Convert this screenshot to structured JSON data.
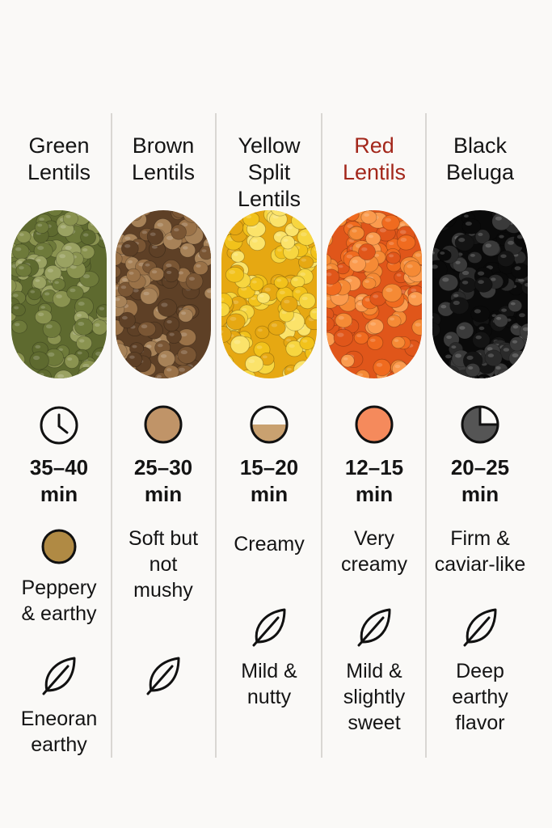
{
  "columns": [
    {
      "title": "Green\nLentils",
      "title_color": "#141414",
      "time": "35–40\nmin",
      "time_icon": "clock-icon",
      "texture_icon": "tan-circle-icon",
      "texture": "Peppery\n& earthy",
      "flavor_icon": "leaf-icon",
      "flavor": "Eneoran\nearthy",
      "lentil_colors": [
        "#6e7a3a",
        "#8a9350",
        "#5e6a2f",
        "#9aa262"
      ]
    },
    {
      "title": "Brown\nLentils",
      "title_color": "#141414",
      "time": "25–30\nmin",
      "time_icon": "brown-circle-icon",
      "texture": "Soft but\nnot\nmushy",
      "flavor_icon": "leaf-icon",
      "lentil_colors": [
        "#7a5634",
        "#9a7248",
        "#5e4026",
        "#a78258"
      ]
    },
    {
      "title": "Yellow\nSplit\nLentils",
      "title_color": "#141414",
      "time": "15–20\nmin",
      "time_icon": "half-filled-circle-icon",
      "texture": "Creamy",
      "flavor_icon": "leaf-icon",
      "flavor": "Mild &\nnutty",
      "lentil_colors": [
        "#f2c21b",
        "#f7d640",
        "#e6a812",
        "#fbe36a"
      ]
    },
    {
      "title": "Red\nLentils",
      "title_color": "#a3271b",
      "time": "12–15\nmin",
      "time_icon": "orange-circle-icon",
      "texture": "Very\ncreamy",
      "flavor_icon": "leaf-icon",
      "flavor": "Mild &\nslightly\nsweet",
      "lentil_colors": [
        "#f06b1f",
        "#f58a35",
        "#e0561a",
        "#fb9b4e"
      ]
    },
    {
      "title": "Black\nBeluga",
      "title_color": "#141414",
      "time": "20–25\nmin",
      "time_icon": "three-quarter-circle-icon",
      "texture": "Firm &\ncaviar-like",
      "flavor_icon": "leaf-icon",
      "flavor": "Deep\nearthy\nflavor",
      "lentil_colors": [
        "#141414",
        "#2a2a2a",
        "#0a0a0a",
        "#3a3a3a"
      ]
    }
  ]
}
